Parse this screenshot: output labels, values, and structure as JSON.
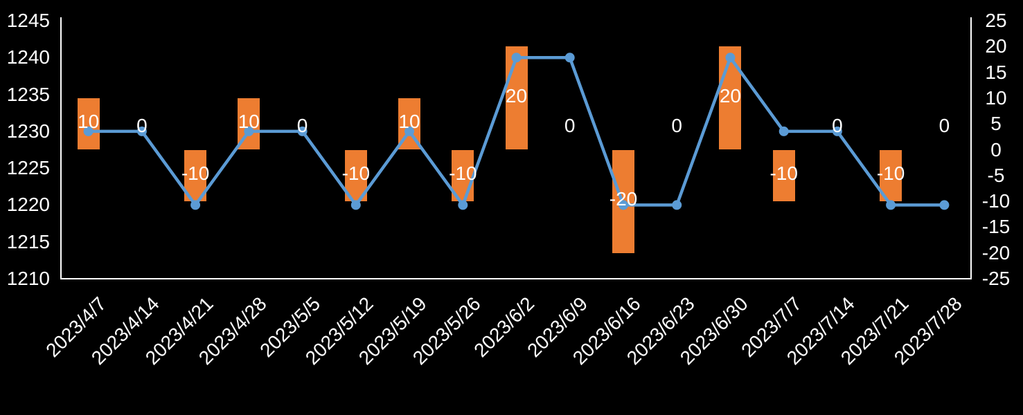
{
  "colors": {
    "background": "#000000",
    "text": "#ffffff",
    "axis_line": "#ffffff",
    "bar": "#ED7D31",
    "line": "#5B9BD5"
  },
  "chart_data": {
    "type": "combo",
    "title": "",
    "legend_position": "none",
    "grid": "off",
    "categories": [
      "2023/4/7",
      "2023/4/14",
      "2023/4/21",
      "2023/4/28",
      "2023/5/5",
      "2023/5/12",
      "2023/5/19",
      "2023/5/26",
      "2023/6/2",
      "2023/6/9",
      "2023/6/16",
      "2023/6/23",
      "2023/6/30",
      "2023/7/7",
      "2023/7/14",
      "2023/7/21",
      "2023/7/28"
    ],
    "series": [
      {
        "name": "price-line",
        "type": "line",
        "axis": "left",
        "color": "#5B9BD5",
        "marker": "circle",
        "values": [
          1230,
          1230,
          1220,
          1230,
          1230,
          1220,
          1230,
          1220,
          1240,
          1240,
          1220,
          1220,
          1240,
          1230,
          1230,
          1220,
          1220
        ]
      },
      {
        "name": "weekly-change-bars",
        "type": "bar",
        "axis": "right",
        "color": "#ED7D31",
        "values": [
          10,
          0,
          -10,
          10,
          0,
          -10,
          10,
          -10,
          20,
          0,
          -20,
          0,
          20,
          -10,
          0,
          -10,
          0
        ],
        "data_labels": [
          "10",
          "0",
          "-10",
          "10",
          "0",
          "-10",
          "10",
          "-10",
          "20",
          "0",
          "-20",
          "0",
          "20",
          "-10",
          "0",
          "-10",
          "0"
        ]
      }
    ],
    "left_axis": {
      "min": 1210,
      "max": 1245,
      "step": 5,
      "tick_labels": [
        "1245",
        "1240",
        "1235",
        "1230",
        "1225",
        "1220",
        "1215",
        "1210"
      ]
    },
    "right_axis": {
      "min": -25,
      "max": 25,
      "step": 5,
      "tick_labels": [
        "25",
        "20",
        "15",
        "10",
        "5",
        "0",
        "-5",
        "-10",
        "-15",
        "-20",
        "-25"
      ]
    }
  }
}
